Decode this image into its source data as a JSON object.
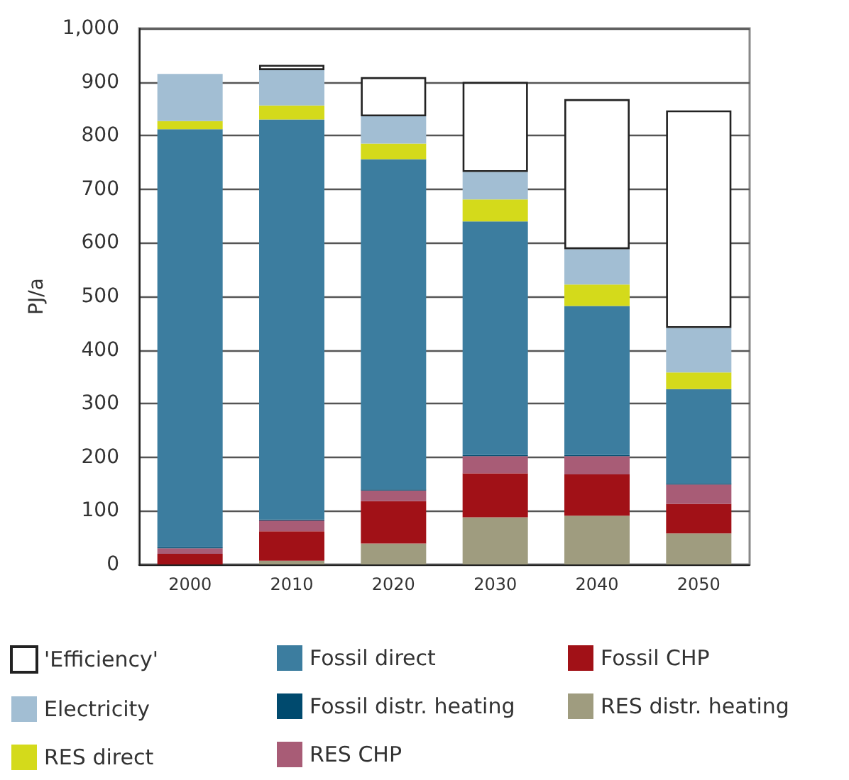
{
  "chart_data": {
    "type": "bar",
    "stacked": true,
    "ylabel": "PJ/a",
    "categories": [
      "2000",
      "2010",
      "2020",
      "2030",
      "2040",
      "2050"
    ],
    "ylim": [
      0,
      1000
    ],
    "yticks": [
      0,
      100,
      200,
      300,
      400,
      500,
      600,
      700,
      800,
      900,
      {
        "value": 1000,
        "label": "1,000"
      }
    ],
    "grid": "y",
    "legend": "bottom",
    "series": [
      {
        "name": "RES distr. heating",
        "color": "#9f9c7f",
        "values": [
          0,
          7,
          39,
          88,
          91,
          58
        ]
      },
      {
        "name": "Fossil CHP",
        "color": "#a11117",
        "values": [
          20,
          55,
          79,
          82,
          77,
          55
        ]
      },
      {
        "name": "RES CHP",
        "color": "#a85c76",
        "values": [
          10,
          20,
          20,
          32,
          34,
          36
        ]
      },
      {
        "name": "Fossil distr. heating",
        "color": "#004a6e",
        "values": [
          2,
          2,
          2,
          2,
          2,
          2
        ]
      },
      {
        "name": "Fossil direct",
        "color": "#3c7d9f",
        "values": [
          780,
          746,
          616,
          436,
          278,
          176
        ]
      },
      {
        "name": "RES direct",
        "color": "#d4da1b",
        "values": [
          15,
          26,
          29,
          41,
          40,
          31
        ]
      },
      {
        "name": "Electricity",
        "color": "#a2bed3",
        "values": [
          88,
          66,
          51,
          51,
          66,
          83
        ]
      },
      {
        "name": "'Efficiency'",
        "color": "#ffffff",
        "values": [
          0,
          10,
          73,
          168,
          280,
          406
        ]
      }
    ]
  }
}
